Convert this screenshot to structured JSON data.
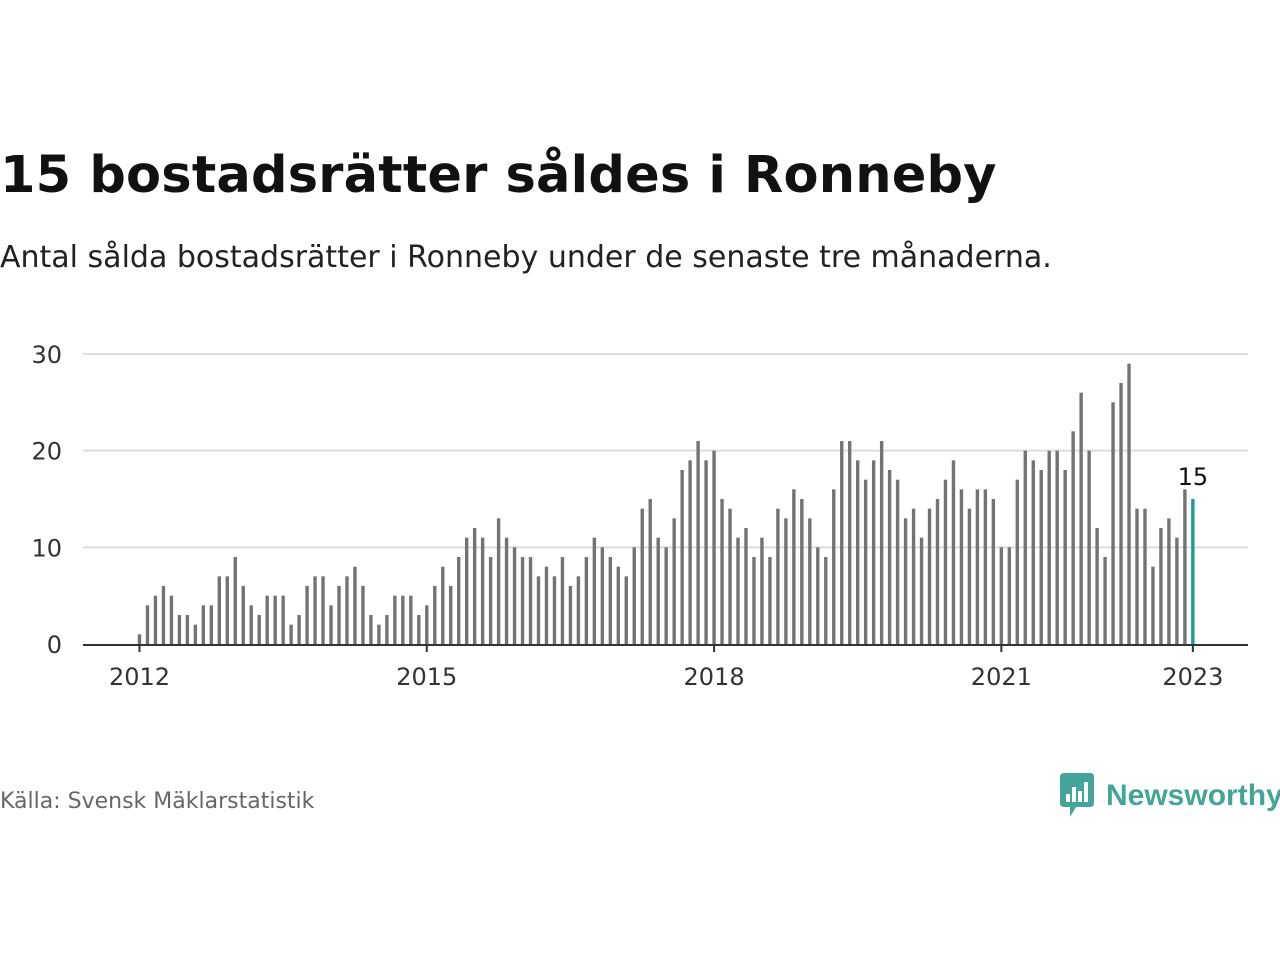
{
  "header": {
    "title": "15 bostadsrätter såldes i Ronneby",
    "subtitle": "Antal sålda bostadsrätter i Ronneby under de senaste tre månaderna."
  },
  "footer": {
    "source": "Källa: Svensk Mäklarstatistik",
    "brand": "Newsworthy"
  },
  "colors": {
    "bar": "#737373",
    "highlight": "#1a9e94",
    "grid": "#dddddd",
    "axis": "#333333",
    "brand": "#43a597"
  },
  "chart_data": {
    "type": "bar",
    "x_start": "2012-01",
    "values": [
      1,
      4,
      5,
      6,
      5,
      3,
      3,
      2,
      4,
      4,
      7,
      7,
      9,
      6,
      4,
      3,
      5,
      5,
      5,
      2,
      3,
      6,
      7,
      7,
      4,
      6,
      7,
      8,
      6,
      3,
      2,
      3,
      5,
      5,
      5,
      3,
      4,
      6,
      8,
      6,
      9,
      11,
      12,
      11,
      9,
      13,
      11,
      10,
      9,
      9,
      7,
      8,
      7,
      9,
      6,
      7,
      9,
      11,
      10,
      9,
      8,
      7,
      10,
      14,
      15,
      11,
      10,
      13,
      18,
      19,
      21,
      19,
      20,
      15,
      14,
      11,
      12,
      9,
      11,
      9,
      14,
      13,
      16,
      15,
      13,
      10,
      9,
      16,
      21,
      21,
      19,
      17,
      19,
      21,
      18,
      17,
      13,
      14,
      11,
      14,
      15,
      17,
      19,
      16,
      14,
      16,
      16,
      15,
      10,
      10,
      17,
      20,
      19,
      18,
      20,
      20,
      18,
      22,
      26,
      20,
      12,
      9,
      25,
      27,
      29,
      14,
      14,
      8,
      12,
      13,
      11,
      16,
      15
    ],
    "highlight_last": true,
    "highlight_label": "15",
    "xticks": [
      "2012",
      "2015",
      "2018",
      "2021",
      "2023"
    ],
    "yticks": [
      "0",
      "10",
      "20",
      "30"
    ],
    "ylim": [
      0,
      30
    ],
    "grid": true,
    "xlabel": "",
    "ylabel": ""
  }
}
